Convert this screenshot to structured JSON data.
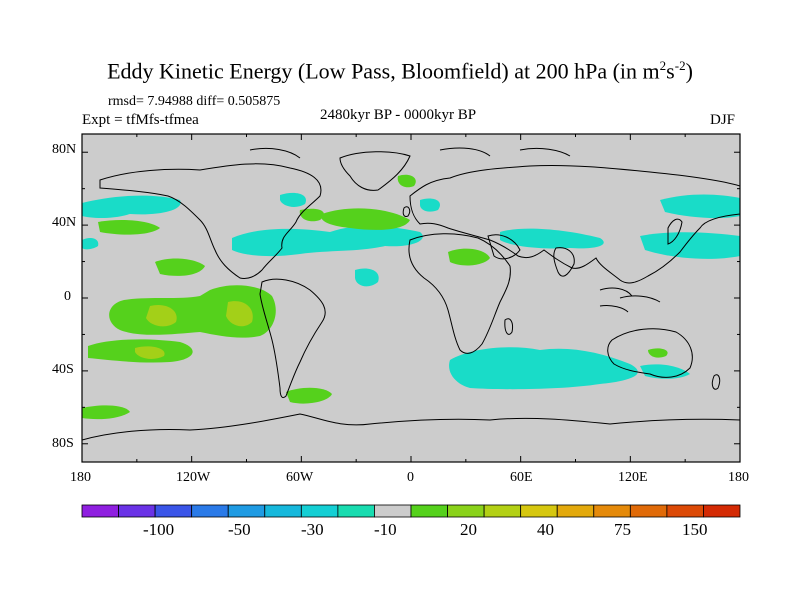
{
  "title_main": "Eddy Kinetic Energy (Low Pass, Bloomfield) at 200 hPa (in m",
  "title_sup1": "2",
  "title_mid": "s",
  "title_sup2": "-2",
  "title_end": ")",
  "stats_text": "rmsd= 7.94988 diff= 0.505875",
  "expt_text": "Expt = tfMfs-tfmea",
  "period_text": "2480kyr BP - 0000kyr BP",
  "season_text": "DJF",
  "lat_labels": [
    "80N",
    "40N",
    "0",
    "40S",
    "80S"
  ],
  "lon_labels": [
    "180",
    "120W",
    "60W",
    "0",
    "60E",
    "120E",
    "180"
  ],
  "colorbar": {
    "colors": [
      "#8f1fe0",
      "#6a32e6",
      "#3a55e8",
      "#2a7ae8",
      "#1f9be3",
      "#16b8dc",
      "#14cfd4",
      "#19dcb0",
      "#cccccc",
      "#55d11c",
      "#8ad21a",
      "#b3d015",
      "#d6c70f",
      "#e3a90c",
      "#e58a0a",
      "#e06a08",
      "#dc4a06",
      "#d42a04"
    ],
    "labels": [
      "-100",
      "-50",
      "-30",
      "-10",
      "20",
      "40",
      "75",
      "150"
    ],
    "label_boundaries": [
      2,
      4,
      6,
      8,
      10,
      12,
      14,
      16
    ]
  },
  "colors": {
    "land_background": "#cccccc",
    "positive_anomaly": "#55d11c",
    "strong_positive": "#a3d018",
    "negative_anomaly": "#19dcc8"
  }
}
